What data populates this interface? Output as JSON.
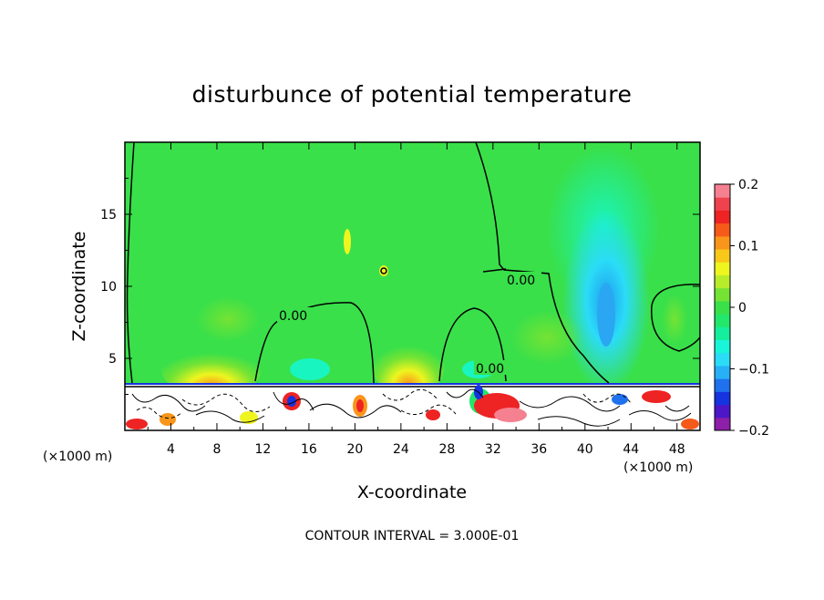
{
  "chart_data": {
    "type": "heatmap",
    "title": "disturbunce of potential temperature",
    "xlabel": "X-coordinate",
    "ylabel": "Z-coordinate",
    "x_unit_left": "(×1000 m)",
    "x_unit_right": "(×1000 m)",
    "xlim": [
      0,
      50
    ],
    "ylim": [
      0,
      20
    ],
    "x_ticks": [
      "4",
      "8",
      "12",
      "16",
      "20",
      "24",
      "28",
      "32",
      "36",
      "40",
      "44",
      "48"
    ],
    "y_ticks": [
      "5",
      "10",
      "15"
    ],
    "colorbar": {
      "range": [
        -0.2,
        0.2
      ],
      "tick_labels": [
        "0.2",
        "0.1",
        "0",
        "−0.1",
        "−0.2"
      ],
      "tick_values": [
        0.2,
        0.1,
        0,
        -0.1,
        -0.2
      ],
      "colors": [
        "#8e1fa8",
        "#4b17c9",
        "#1633e0",
        "#1f71ee",
        "#27b0f5",
        "#2bdcf7",
        "#19f5d8",
        "#15ee9c",
        "#22e76a",
        "#39e04a",
        "#74e334",
        "#b8ec2a",
        "#eef51f",
        "#f8c81a",
        "#f8951a",
        "#f55a1a",
        "#ee2323",
        "#f0414e",
        "#f5808f"
      ]
    },
    "contour_labels": [
      "0.00",
      "0.00",
      "0.00"
    ],
    "footnote": "CONTOUR INTERVAL = 3.000E-01",
    "background_value": 0.0,
    "field_features": [
      {
        "kind": "negative-plume",
        "x": 42,
        "z": 9,
        "value": -0.09
      },
      {
        "kind": "negative-plume",
        "x": 42,
        "z": 15,
        "value": -0.04
      },
      {
        "kind": "positive-bubble",
        "x": 8,
        "z": 4,
        "value": 0.07
      },
      {
        "kind": "positive-bubble",
        "x": 23.5,
        "z": 4,
        "value": 0.07
      },
      {
        "kind": "positive-spot",
        "x": 19.2,
        "z": 13,
        "value": 0.08
      },
      {
        "kind": "positive-spot",
        "x": 22.6,
        "z": 11,
        "value": 0.06
      }
    ],
    "boundary_layer_top_z": 3.3
  }
}
